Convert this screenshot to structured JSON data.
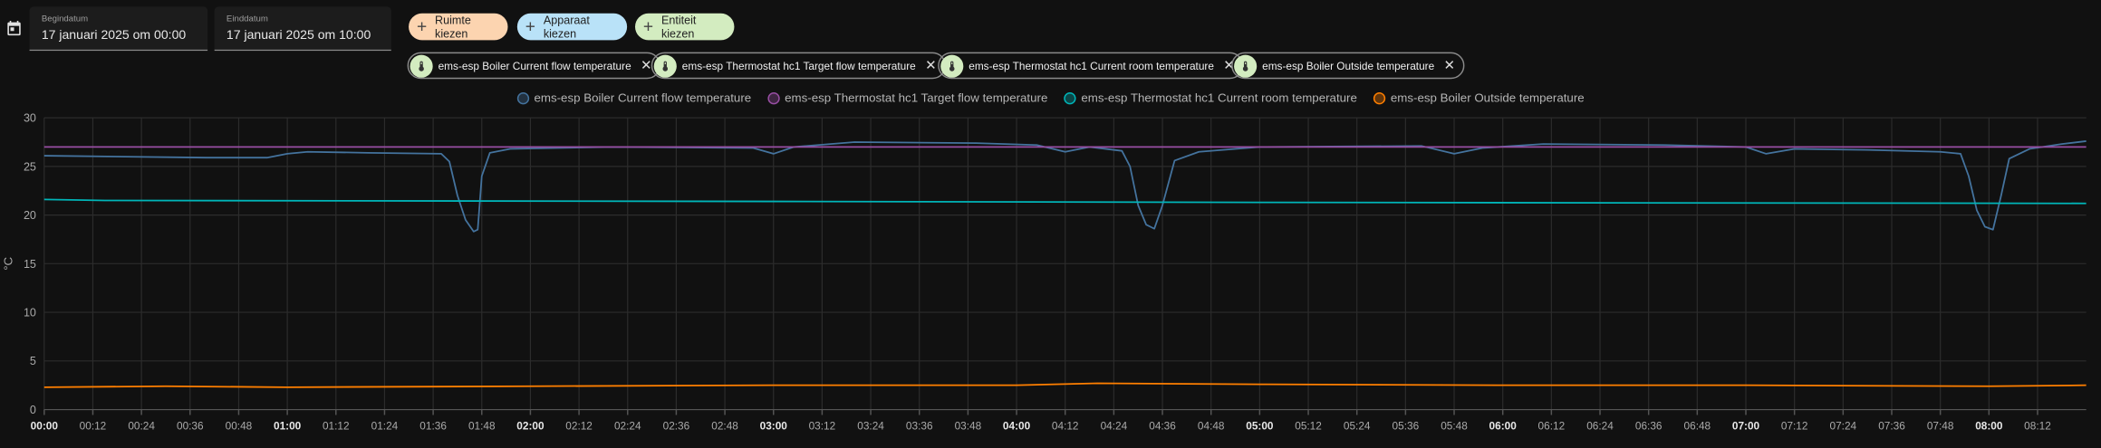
{
  "header": {
    "start_label": "Begindatum",
    "start_value": "17 januari 2025 om 00:00",
    "end_label": "Einddatum",
    "end_value": "17 januari 2025 om 10:00",
    "buttons": [
      "Ruimte kiezen",
      "Apparaat kiezen",
      "Entiteit kiezen"
    ]
  },
  "chart_data": {
    "type": "line",
    "y_label": "°C",
    "xlim": [
      "00:00",
      "08:24"
    ],
    "ylim": [
      0,
      30
    ],
    "yticks": [
      0,
      5,
      10,
      15,
      20,
      25,
      30
    ],
    "grid": true,
    "xticks": [
      "00:00",
      "00:12",
      "00:24",
      "00:36",
      "00:48",
      "01:00",
      "01:12",
      "01:24",
      "01:36",
      "01:48",
      "02:00",
      "02:12",
      "02:24",
      "02:36",
      "02:48",
      "03:00",
      "03:12",
      "03:24",
      "03:36",
      "03:48",
      "04:00",
      "04:12",
      "04:24",
      "04:36",
      "04:48",
      "05:00",
      "05:12",
      "05:24",
      "05:36",
      "05:48",
      "06:00",
      "06:12",
      "06:24",
      "06:36",
      "06:48",
      "07:00",
      "07:12",
      "07:24",
      "07:36",
      "07:48",
      "08:00",
      "08:12"
    ],
    "series": [
      {
        "name": "ems-esp Boiler Current flow temperature",
        "color": "#44739e",
        "x": [
          "00:00",
          "00:20",
          "00:40",
          "00:55",
          "01:00",
          "01:05",
          "01:20",
          "01:38",
          "01:40",
          "01:42",
          "01:44",
          "01:46",
          "01:47",
          "01:48",
          "01:50",
          "01:55",
          "02:20",
          "02:55",
          "03:00",
          "03:05",
          "03:20",
          "03:50",
          "04:05",
          "04:12",
          "04:18",
          "04:26",
          "04:28",
          "04:30",
          "04:32",
          "04:34",
          "04:36",
          "04:39",
          "04:45",
          "05:00",
          "05:40",
          "05:48",
          "05:55",
          "06:10",
          "06:40",
          "07:00",
          "07:05",
          "07:12",
          "07:30",
          "07:48",
          "07:53",
          "07:55",
          "07:57",
          "07:59",
          "08:01",
          "08:03",
          "08:05",
          "08:10",
          "08:18",
          "08:24"
        ],
        "values": [
          26.1,
          26.0,
          25.9,
          25.9,
          26.3,
          26.5,
          26.4,
          26.3,
          25.5,
          22,
          19.5,
          18.3,
          18.5,
          24,
          26.4,
          26.8,
          27.0,
          26.9,
          26.3,
          27.0,
          27.5,
          27.4,
          27.2,
          26.5,
          27.0,
          26.6,
          25,
          21,
          19.0,
          18.6,
          21,
          25.6,
          26.5,
          27.0,
          27.1,
          26.3,
          26.9,
          27.3,
          27.2,
          27.0,
          26.3,
          26.8,
          26.7,
          26.5,
          26.3,
          24,
          20.5,
          18.8,
          18.5,
          22,
          25.8,
          26.8,
          27.3,
          27.6
        ]
      },
      {
        "name": "ems-esp Thermostat hc1 Target flow temperature",
        "color": "#984ea3",
        "x": [
          "00:00",
          "08:24"
        ],
        "values": [
          27,
          27
        ]
      },
      {
        "name": "ems-esp Thermostat hc1 Current room temperature",
        "color": "#00b5b8",
        "x": [
          "00:00",
          "00:15",
          "03:00",
          "05:00",
          "08:24"
        ],
        "values": [
          21.6,
          21.5,
          21.4,
          21.3,
          21.2
        ]
      },
      {
        "name": "ems-esp Boiler Outside temperature",
        "color": "#ff7f00",
        "x": [
          "00:00",
          "00:30",
          "01:00",
          "02:00",
          "03:00",
          "04:00",
          "04:20",
          "05:00",
          "06:00",
          "07:00",
          "08:00",
          "08:24"
        ],
        "values": [
          2.3,
          2.4,
          2.3,
          2.4,
          2.5,
          2.5,
          2.7,
          2.6,
          2.5,
          2.5,
          2.4,
          2.5
        ]
      }
    ]
  }
}
